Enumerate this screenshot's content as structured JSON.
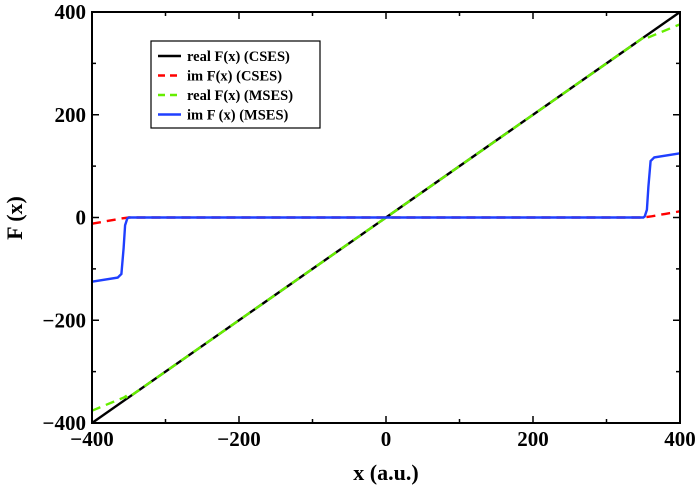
{
  "chart_data": {
    "type": "line",
    "title": "",
    "xlabel": "x (a.u.)",
    "ylabel": "F (x)",
    "xlim": [
      -400,
      400
    ],
    "ylim": [
      -400,
      400
    ],
    "xticks": [
      -400,
      -200,
      0,
      200,
      400
    ],
    "yticks": [
      -400,
      -200,
      0,
      200,
      400
    ],
    "xtick_labels": [
      "−400",
      "−200",
      "0",
      "200",
      "400"
    ],
    "ytick_labels": [
      "−400",
      "−200",
      "0",
      "200",
      "400"
    ],
    "grid": false,
    "legend_position": "top-left",
    "series": [
      {
        "name": "real F(x) (CSES)",
        "color": "#000000",
        "dash": "solid",
        "x": [
          -400,
          400
        ],
        "y": [
          -400,
          400
        ]
      },
      {
        "name": "im F(x) (CSES)",
        "color": "#ff0000",
        "dash": "dashed",
        "x": [
          -400,
          -380,
          -360,
          -350,
          350,
          360,
          380,
          400
        ],
        "y": [
          -12,
          -7,
          -2,
          0,
          0,
          2,
          7,
          12
        ]
      },
      {
        "name": "real F(x) (MSES)",
        "color": "#66ee00",
        "dash": "dashed",
        "x": [
          -400,
          -356,
          -354,
          -352,
          352,
          354,
          356,
          400
        ],
        "y": [
          -376,
          -350,
          -348,
          -352,
          352,
          348,
          350,
          376
        ]
      },
      {
        "name": "im F (x) (MSES)",
        "color": "#1f3fff",
        "dash": "solid",
        "x": [
          -400,
          -365,
          -360,
          -357,
          -355,
          -352,
          -350,
          350,
          352,
          355,
          357,
          360,
          365,
          400
        ],
        "y": [
          -125,
          -117,
          -110,
          -60,
          -15,
          -2,
          0,
          0,
          2,
          15,
          60,
          110,
          117,
          125
        ]
      }
    ]
  }
}
